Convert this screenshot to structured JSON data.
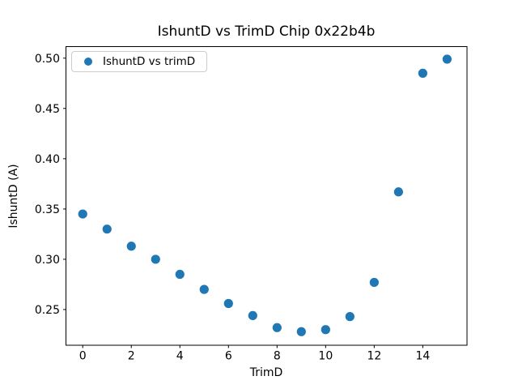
{
  "figure": {
    "background": "#ffffff"
  },
  "chart_data": {
    "type": "scatter",
    "title": "IshuntD vs TrimD Chip 0x22b4b",
    "xlabel": "TrimD",
    "ylabel": "IshuntD (A)",
    "series": [
      {
        "name": "IshuntD vs trimD",
        "color": "#1f77b4",
        "x": [
          0,
          1,
          2,
          3,
          4,
          5,
          6,
          7,
          8,
          9,
          10,
          11,
          12,
          13,
          14,
          15
        ],
        "y": [
          0.345,
          0.33,
          0.313,
          0.3,
          0.285,
          0.27,
          0.256,
          0.244,
          0.232,
          0.228,
          0.23,
          0.243,
          0.277,
          0.367,
          0.485,
          0.499
        ]
      }
    ],
    "xticks": [
      0,
      2,
      4,
      6,
      8,
      10,
      12,
      14
    ],
    "yticks": [
      0.25,
      0.3,
      0.35,
      0.4,
      0.45,
      0.5
    ],
    "xlim": [
      -0.69,
      15.82
    ],
    "ylim": [
      0.2145,
      0.5115
    ],
    "grid": false,
    "legend_position": "upper left",
    "marker_radius_px": 5.6
  },
  "colors": {
    "marker": "#1f77b4",
    "spine": "#000000",
    "tick_text": "#000000",
    "legend_border": "#cccccc"
  }
}
